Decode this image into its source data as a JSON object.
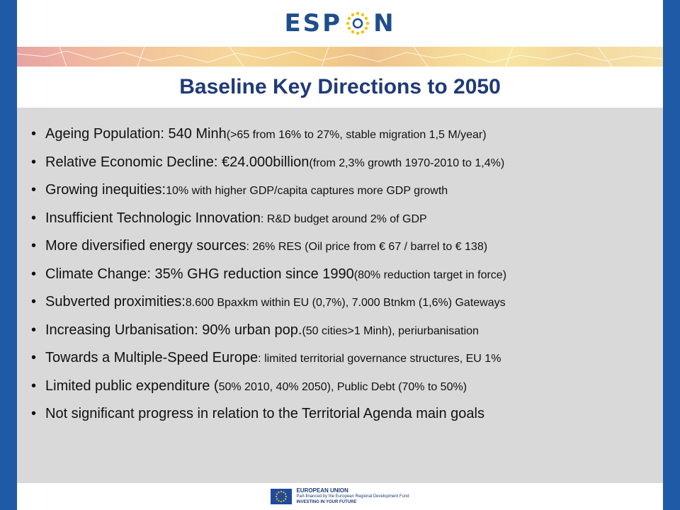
{
  "header": {
    "logo_letters_left": "ESP",
    "logo_letter_right": "N"
  },
  "slide": {
    "title": "Baseline Key Directions to 2050"
  },
  "bullets": [
    {
      "big": "Ageing Population: 540 Minh ",
      "small": "(>65 from 16% to 27%, stable migration 1,5 M/year)"
    },
    {
      "big": "Relative Economic Decline: €24.000billion ",
      "small": "(from 2,3% growth 1970-2010 to 1,4%)"
    },
    {
      "big": "Growing inequities: ",
      "small": "10% with higher GDP/capita captures more GDP growth"
    },
    {
      "big": "Insufficient Technologic Innovation",
      "small": ": R&D budget around 2% of GDP"
    },
    {
      "big": "More diversified energy sources",
      "small": ": 26% RES (Oil price from € 67 / barrel to € 138)"
    },
    {
      "big": "Climate Change: 35% GHG reduction since 1990 ",
      "small": "(80% reduction target in force)"
    },
    {
      "big": "Subverted proximities: ",
      "small": "8.600 Bpaxkm within EU (0,7%), 7.000 Btnkm (1,6%) Gateways"
    },
    {
      "big": "Increasing Urbanisation: 90% urban pop. ",
      "small": "(50 cities>1 Minh), periurbanisation"
    },
    {
      "big": "Towards a Multiple-Speed Europe",
      "small": ": limited territorial governance structures, EU 1%"
    },
    {
      "big": "Limited public expenditure (",
      "small": "50% 2010, 40% 2050), Public Debt (70% to 50%)"
    },
    {
      "big": "Not significant progress in relation to the Territorial Agenda main goals",
      "small": ""
    }
  ],
  "footer": {
    "line1": "EUROPEAN UNION",
    "line2": "Part-financed by the European Regional Development Fund",
    "line3": "INVESTING IN YOUR FUTURE"
  },
  "colors": {
    "side_bar": "#1f5aa6",
    "title": "#1f3a78",
    "content_bg": "#d9d9d9"
  }
}
